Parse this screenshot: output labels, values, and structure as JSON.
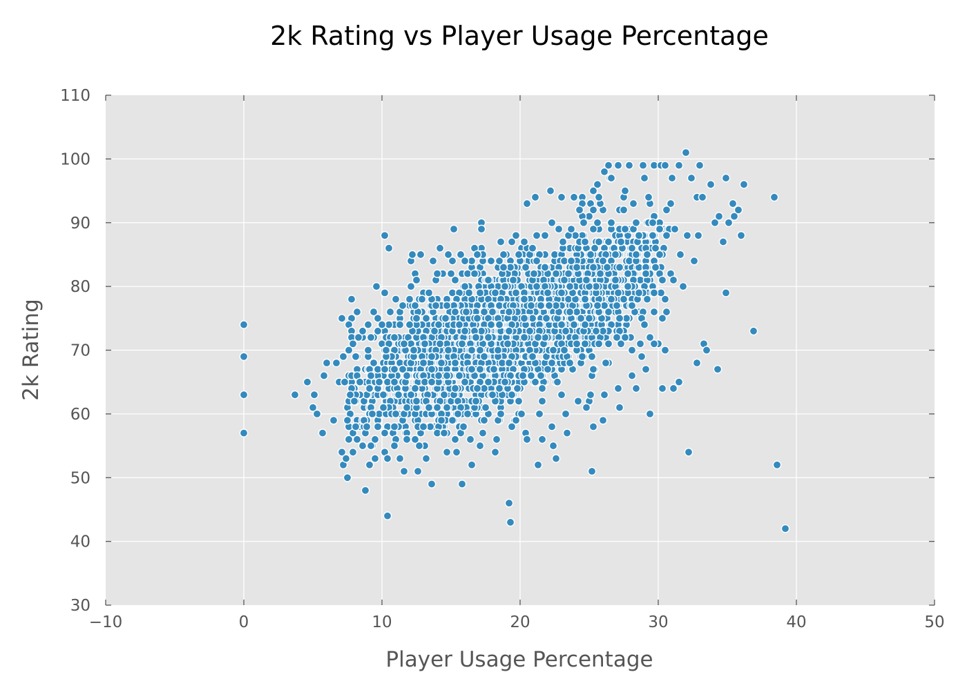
{
  "colors": {
    "point": "#348abd",
    "plot_background": "#e5e5e5",
    "grid": "#ffffff",
    "text": "#555555"
  },
  "chart_data": {
    "type": "scatter",
    "title": "2k Rating vs Player Usage Percentage",
    "xlabel": "Player Usage Percentage",
    "ylabel": "2k Rating",
    "xlim": [
      -10,
      50
    ],
    "ylim": [
      30,
      110
    ],
    "xticks": [
      -10,
      0,
      10,
      20,
      30,
      40,
      50
    ],
    "yticks": [
      30,
      40,
      50,
      60,
      70,
      80,
      90,
      100,
      110
    ],
    "xtick_labels": [
      "−10",
      "0",
      "10",
      "20",
      "30",
      "40",
      "50"
    ],
    "ytick_labels": [
      "30",
      "40",
      "50",
      "60",
      "70",
      "80",
      "90",
      "100",
      "110"
    ],
    "grid": true,
    "series": [
      {
        "points": [
          [
            0,
            74
          ],
          [
            0,
            69
          ],
          [
            0,
            63
          ],
          [
            0,
            57
          ],
          [
            3.7,
            63
          ],
          [
            4.6,
            65
          ],
          [
            5.0,
            61
          ],
          [
            5.1,
            63
          ],
          [
            5.3,
            60
          ],
          [
            5.7,
            57
          ],
          [
            5.8,
            66
          ],
          [
            6.0,
            68
          ],
          [
            6.5,
            59
          ],
          [
            6.7,
            68
          ],
          [
            7.1,
            75
          ],
          [
            7.2,
            69
          ],
          [
            7.1,
            54
          ],
          [
            7.2,
            52
          ],
          [
            7.4,
            53
          ],
          [
            7.5,
            50
          ],
          [
            7.5,
            59
          ],
          [
            7.6,
            56
          ],
          [
            7.8,
            64
          ],
          [
            7.9,
            71
          ],
          [
            7.9,
            54
          ],
          [
            8.1,
            58
          ],
          [
            8.2,
            66
          ],
          [
            8.3,
            72
          ],
          [
            8.6,
            73
          ],
          [
            8.7,
            59
          ],
          [
            8.8,
            48
          ],
          [
            9.1,
            52
          ],
          [
            9.2,
            55
          ],
          [
            9.4,
            76
          ],
          [
            9.5,
            53
          ],
          [
            9.6,
            80
          ],
          [
            10.2,
            57
          ],
          [
            10.2,
            88
          ],
          [
            10.5,
            86
          ],
          [
            10.4,
            53
          ],
          [
            10.4,
            44
          ],
          [
            10.9,
            55
          ],
          [
            11.3,
            53
          ],
          [
            11.6,
            51
          ],
          [
            12.2,
            85
          ],
          [
            12.6,
            51
          ],
          [
            12.8,
            85
          ],
          [
            13.2,
            53
          ],
          [
            13.6,
            49
          ],
          [
            13.7,
            84
          ],
          [
            14.2,
            86
          ],
          [
            14.7,
            54
          ],
          [
            15.2,
            89
          ],
          [
            15.4,
            54
          ],
          [
            15.7,
            85
          ],
          [
            15.8,
            49
          ],
          [
            16.5,
            52
          ],
          [
            16.7,
            86
          ],
          [
            17.2,
            90
          ],
          [
            17.2,
            89
          ],
          [
            18.2,
            54
          ],
          [
            18.6,
            87
          ],
          [
            19.2,
            46
          ],
          [
            19.3,
            43
          ],
          [
            19.7,
            88
          ],
          [
            20.4,
            57
          ],
          [
            20.5,
            93
          ],
          [
            21.1,
            94
          ],
          [
            21.3,
            52
          ],
          [
            21.6,
            56
          ],
          [
            22.2,
            95
          ],
          [
            22.4,
            55
          ],
          [
            22.6,
            53
          ],
          [
            23.0,
            94
          ],
          [
            23.4,
            57
          ],
          [
            23.9,
            94
          ],
          [
            24.3,
            92
          ],
          [
            24.8,
            61
          ],
          [
            25.2,
            51
          ],
          [
            25.3,
            95
          ],
          [
            25.3,
            58
          ],
          [
            25.7,
            94
          ],
          [
            26.0,
            59
          ],
          [
            26.1,
            98
          ],
          [
            26.4,
            99
          ],
          [
            26.6,
            97
          ],
          [
            27.1,
            99
          ],
          [
            27.2,
            61
          ],
          [
            27.6,
            95
          ],
          [
            27.9,
            99
          ],
          [
            28.2,
            93
          ],
          [
            28.4,
            64
          ],
          [
            28.9,
            99
          ],
          [
            29.0,
            97
          ],
          [
            29.3,
            94
          ],
          [
            29.4,
            60
          ],
          [
            29.7,
            99
          ],
          [
            30.2,
            99
          ],
          [
            30.3,
            64
          ],
          [
            30.5,
            99
          ],
          [
            30.6,
            92
          ],
          [
            31.0,
            97
          ],
          [
            31.1,
            64
          ],
          [
            31.1,
            81
          ],
          [
            31.5,
            99
          ],
          [
            31.5,
            65
          ],
          [
            31.8,
            80
          ],
          [
            32.0,
            101
          ],
          [
            32.2,
            54
          ],
          [
            32.4,
            97
          ],
          [
            32.8,
            94
          ],
          [
            32.8,
            68
          ],
          [
            33.0,
            99
          ],
          [
            33.3,
            71
          ],
          [
            33.5,
            70
          ],
          [
            33.8,
            96
          ],
          [
            34.1,
            90
          ],
          [
            34.3,
            67
          ],
          [
            34.4,
            91
          ],
          [
            34.7,
            87
          ],
          [
            34.9,
            79
          ],
          [
            34.9,
            97
          ],
          [
            35.1,
            90
          ],
          [
            35.4,
            93
          ],
          [
            35.5,
            91
          ],
          [
            35.8,
            92
          ],
          [
            36.0,
            88
          ],
          [
            36.2,
            96
          ],
          [
            36.9,
            73
          ],
          [
            38.4,
            94
          ],
          [
            38.6,
            52
          ],
          [
            39.2,
            42
          ],
          [
            6.9,
            65
          ],
          [
            7.3,
            65
          ],
          [
            7.7,
            63
          ],
          [
            8.0,
            62
          ],
          [
            8.4,
            65
          ],
          [
            8.9,
            58
          ],
          [
            9.1,
            64
          ],
          [
            9.7,
            75
          ],
          [
            10.0,
            74
          ],
          [
            10.1,
            61
          ],
          [
            10.6,
            76
          ],
          [
            11.0,
            60
          ],
          [
            11.5,
            77
          ],
          [
            11.8,
            56
          ],
          [
            12.0,
            78
          ],
          [
            12.5,
            81
          ],
          [
            13.0,
            58
          ],
          [
            13.4,
            79
          ],
          [
            14.0,
            82
          ],
          [
            14.5,
            57
          ],
          [
            15.0,
            82
          ],
          [
            15.5,
            60
          ],
          [
            16.0,
            84
          ],
          [
            16.4,
            56
          ],
          [
            16.9,
            85
          ],
          [
            17.4,
            59
          ],
          [
            17.9,
            84
          ],
          [
            18.3,
            56
          ],
          [
            18.8,
            85
          ],
          [
            19.4,
            58
          ],
          [
            19.9,
            85
          ],
          [
            20.5,
            56
          ],
          [
            20.9,
            86
          ],
          [
            21.4,
            60
          ],
          [
            21.8,
            88
          ],
          [
            22.3,
            58
          ],
          [
            22.8,
            89
          ],
          [
            23.3,
            60
          ],
          [
            23.7,
            89
          ],
          [
            24.2,
            62
          ],
          [
            24.6,
            90
          ],
          [
            25.1,
            63
          ],
          [
            25.6,
            90
          ],
          [
            26.1,
            63
          ],
          [
            26.6,
            90
          ],
          [
            27.1,
            64
          ],
          [
            27.6,
            89
          ],
          [
            28.1,
            66
          ],
          [
            28.6,
            88
          ],
          [
            29.1,
            67
          ],
          [
            29.6,
            90
          ],
          [
            30.1,
            85
          ],
          [
            30.6,
            76
          ],
          [
            31.2,
            89
          ],
          [
            31.6,
            85
          ],
          [
            32.1,
            88
          ],
          [
            32.6,
            84
          ],
          [
            33.2,
            94
          ],
          [
            32.9,
            88
          ],
          [
            30.3,
            75
          ]
        ]
      }
    ]
  }
}
